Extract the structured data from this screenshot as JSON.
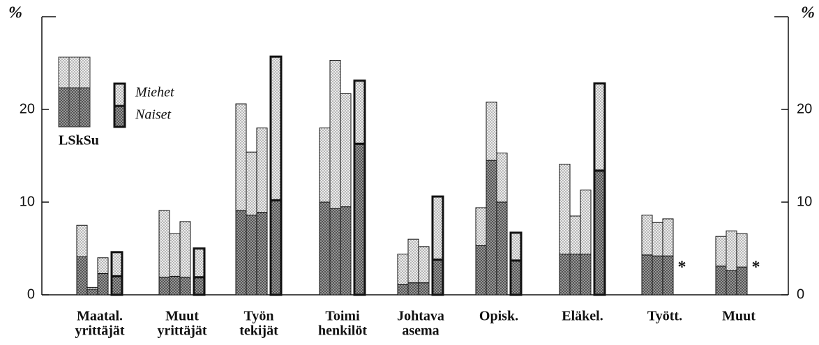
{
  "chart_data": {
    "type": "bar",
    "y_label": "%",
    "categories": [
      [
        "Maatal.",
        "yrittäjät"
      ],
      [
        "Muut",
        "yrittäjät"
      ],
      [
        "Työn",
        "tekijät"
      ],
      [
        "Toimi",
        "henkilöt"
      ],
      [
        "Johtava",
        "asema"
      ],
      [
        "Opisk."
      ],
      [
        "Eläkel."
      ],
      [
        "Tyött."
      ],
      [
        "Muut"
      ]
    ],
    "groups": [
      {
        "series": [
          {
            "name": "Naiset",
            "color": "#9a9a9a",
            "values": [
              4.1,
              1.9,
              9.1,
              10.0,
              1.1,
              5.3,
              4.4,
              4.3,
              3.1
            ]
          },
          {
            "name": "Miehet",
            "color": "#e2e2e2",
            "values": [
              3.4,
              7.2,
              11.5,
              8.0,
              3.3,
              4.1,
              9.7,
              4.3,
              3.2
            ]
          }
        ]
      },
      {
        "series": [
          {
            "name": "Naiset",
            "color": "#9a9a9a",
            "values": [
              0.6,
              2.0,
              8.6,
              9.3,
              1.3,
              14.5,
              4.4,
              4.2,
              2.6
            ]
          },
          {
            "name": "Miehet",
            "color": "#e2e2e2",
            "values": [
              0.2,
              4.6,
              6.8,
              16.0,
              4.7,
              6.3,
              4.1,
              3.6,
              4.3
            ]
          }
        ]
      },
      {
        "series": [
          {
            "name": "Naiset",
            "color": "#9a9a9a",
            "values": [
              2.3,
              1.9,
              8.9,
              9.5,
              1.3,
              10.0,
              4.4,
              4.2,
              3.0
            ]
          },
          {
            "name": "Miehet",
            "color": "#e2e2e2",
            "values": [
              1.7,
              6.0,
              9.1,
              12.2,
              3.9,
              5.3,
              6.9,
              4.0,
              3.6
            ]
          }
        ]
      },
      {
        "series": [
          {
            "name": "Naiset",
            "color": "#9a9a9a",
            "values": [
              2.0,
              1.9,
              10.2,
              16.3,
              3.8,
              3.7,
              13.4,
              null,
              null
            ]
          },
          {
            "name": "Miehet",
            "color": "#e2e2e2",
            "values": [
              2.6,
              3.1,
              15.5,
              6.8,
              6.8,
              3.0,
              9.4,
              null,
              null
            ]
          }
        ]
      }
    ],
    "missing_label": "*",
    "legend_groups": "LSkSu",
    "ylim": [
      0,
      30
    ],
    "yticks": [
      0,
      10,
      20
    ],
    "y2lim": [
      0,
      30
    ],
    "y2ticks": [
      0,
      10,
      20
    ]
  }
}
